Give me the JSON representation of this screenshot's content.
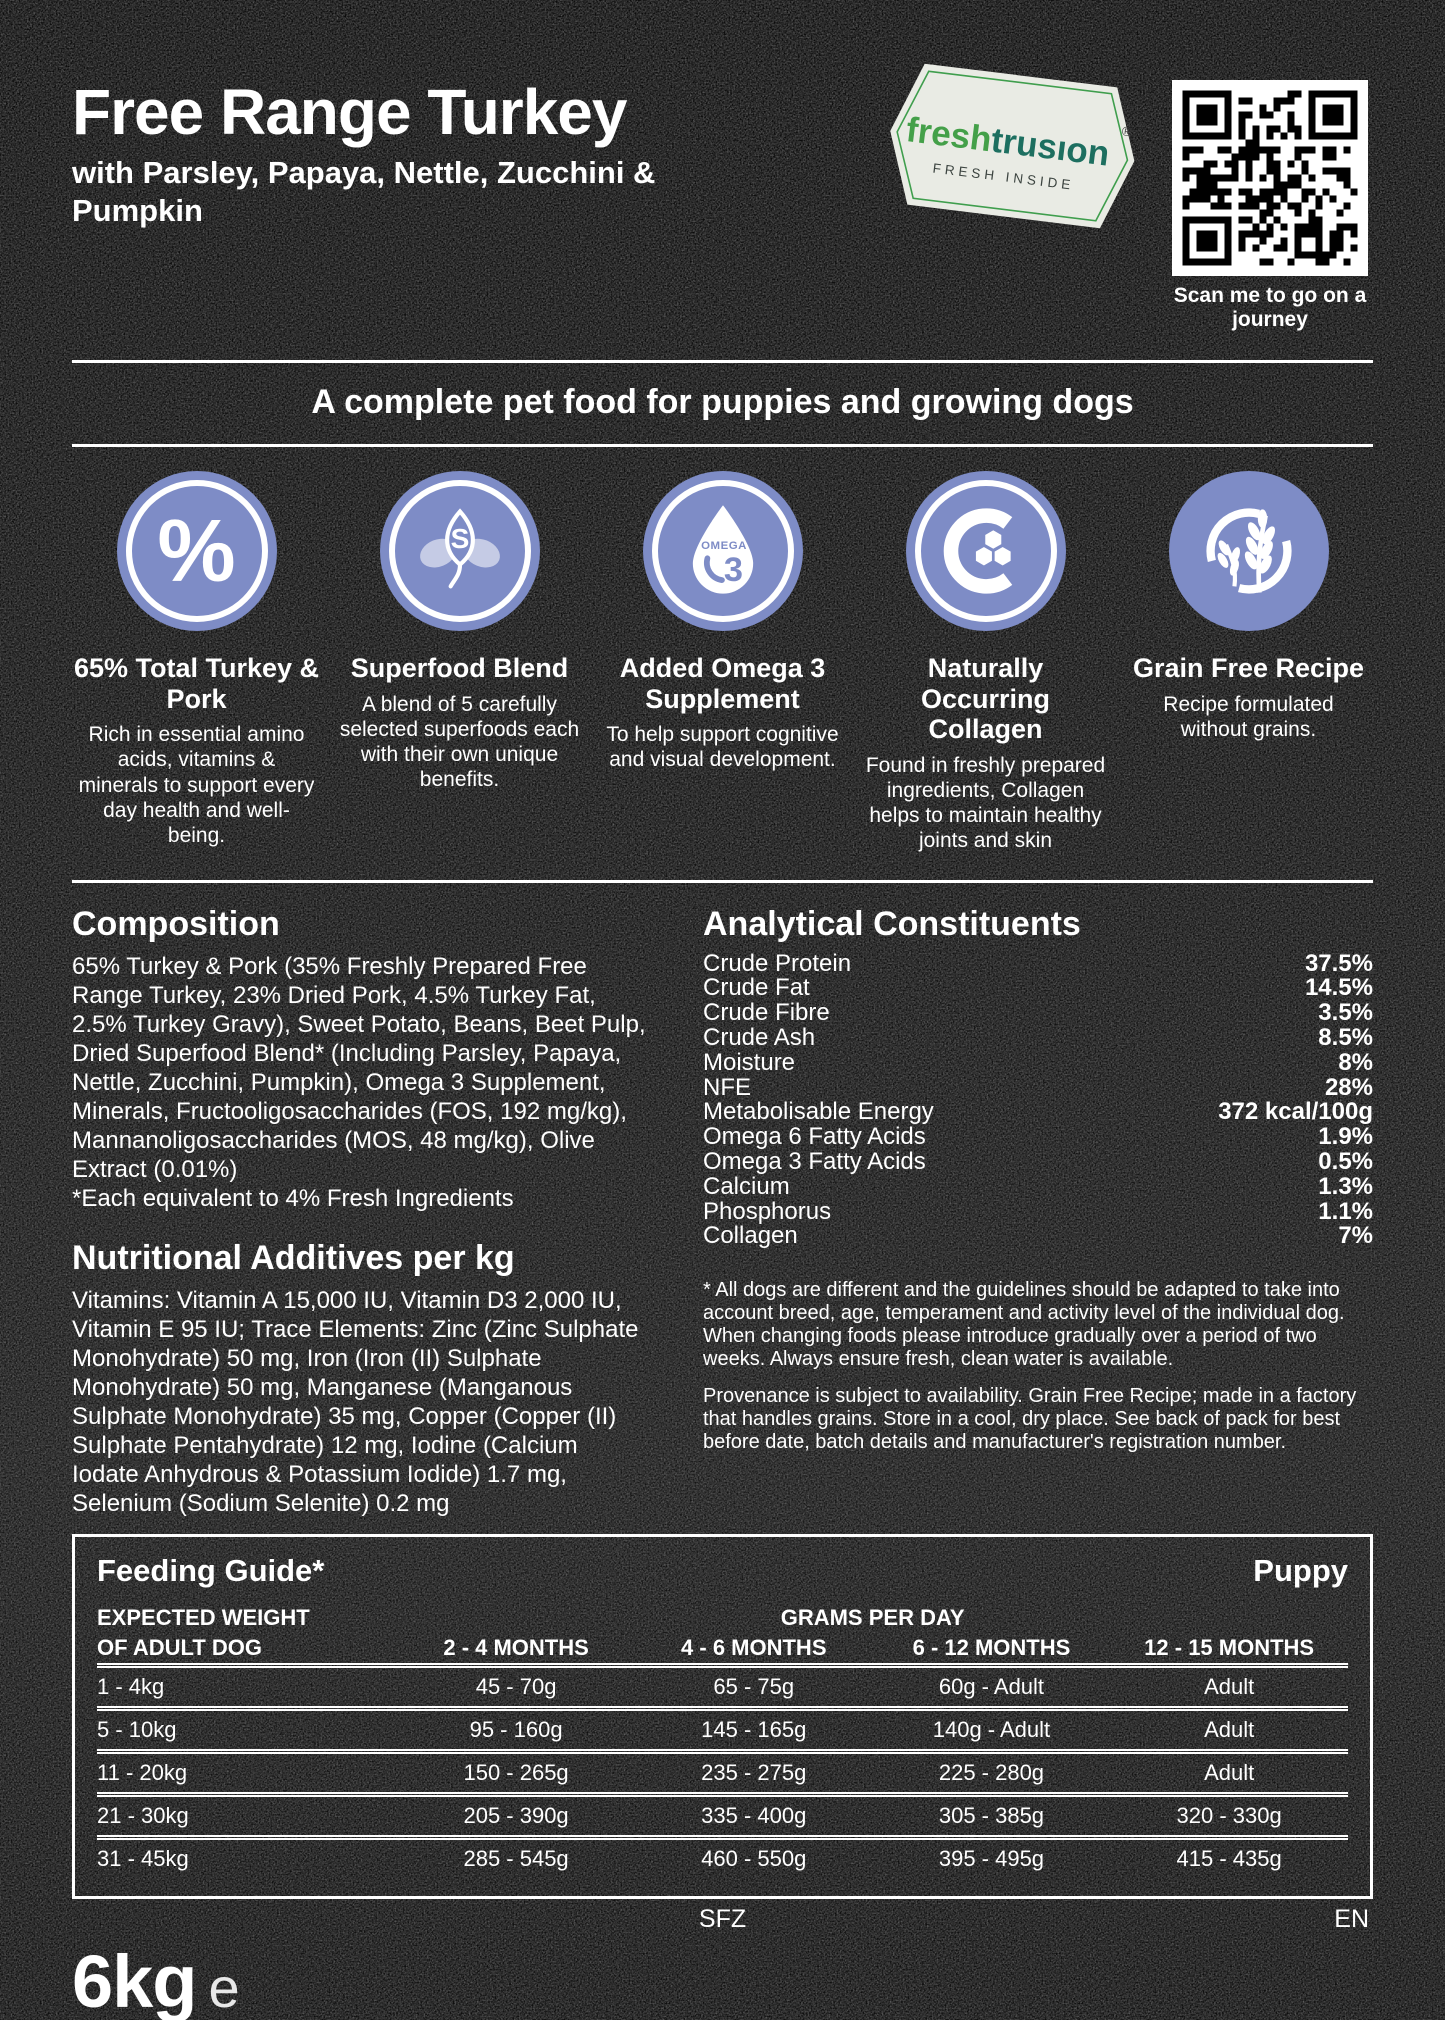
{
  "header": {
    "title": "Free Range Turkey",
    "subtitle": "with Parsley, Papaya, Nettle, Zucchini & Pumpkin",
    "logo": {
      "brand_fresh": "fresh",
      "brand_trusion": "trusıon",
      "registered": "®",
      "tagline": "FRESH INSIDE"
    },
    "qr_caption": "Scan me to go on a journey"
  },
  "banner": "A complete pet food for puppies and growing dogs",
  "features": [
    {
      "icon": "percent-icon",
      "icon_glyph": "%",
      "title": "65% Total Turkey & Pork",
      "description": "Rich in essential amino acids, vitamins & minerals to support every day health and well-being."
    },
    {
      "icon": "superfood-leaf-icon",
      "icon_letter": "S",
      "title": "Superfood Blend",
      "description": "A blend of 5 carefully selected superfoods each with their own unique benefits."
    },
    {
      "icon": "omega3-drop-icon",
      "icon_text_top": "OMEGA",
      "icon_text_num": "3",
      "title": "Added Omega 3 Supplement",
      "description": "To help support cognitive and visual development."
    },
    {
      "icon": "collagen-icon",
      "title": "Naturally Occurring Collagen",
      "description": "Found in freshly prepared ingredients, Collagen helps to maintain healthy joints and skin"
    },
    {
      "icon": "grain-free-icon",
      "title": "Grain Free Recipe",
      "description": "Recipe formulated without grains."
    }
  ],
  "composition": {
    "heading": "Composition",
    "body": "65% Turkey & Pork (35% Freshly Prepared Free Range Turkey, 23% Dried Pork, 4.5% Turkey Fat, 2.5% Turkey Gravy), Sweet Potato, Beans, Beet Pulp, Dried Superfood Blend* (Including Parsley, Papaya, Nettle, Zucchini, Pumpkin), Omega 3 Supplement, Minerals, Fructooligosaccharides (FOS, 192 mg/kg), Mannanoligosaccharides (MOS, 48 mg/kg), Olive Extract (0.01%)",
    "footnote": "*Each equivalent to 4% Fresh Ingredients"
  },
  "nutritional_additives": {
    "heading": "Nutritional Additives per kg",
    "body": "Vitamins: Vitamin A 15,000 IU, Vitamin D3 2,000 IU, Vitamin E 95 IU; Trace Elements: Zinc (Zinc Sulphate Monohydrate) 50 mg, Iron (Iron (II) Sulphate Monohydrate) 50 mg, Manganese (Manganous Sulphate Monohydrate) 35 mg, Copper (Copper (II) Sulphate Pentahydrate) 12 mg, Iodine (Calcium Iodate Anhydrous & Potassium Iodide) 1.7 mg, Selenium (Sodium Selenite) 0.2 mg"
  },
  "analytical_constituents": {
    "heading": "Analytical Constituents",
    "rows": [
      {
        "label": "Crude Protein",
        "value": "37.5%"
      },
      {
        "label": "Crude Fat",
        "value": "14.5%"
      },
      {
        "label": "Crude Fibre",
        "value": "3.5%"
      },
      {
        "label": "Crude Ash",
        "value": "8.5%"
      },
      {
        "label": "Moisture",
        "value": "8%"
      },
      {
        "label": "NFE",
        "value": "28%"
      },
      {
        "label": "Metabolisable Energy",
        "value": "372 kcal/100g"
      },
      {
        "label": "Omega 6 Fatty Acids",
        "value": "1.9%"
      },
      {
        "label": "Omega 3 Fatty Acids",
        "value": "0.5%"
      },
      {
        "label": "Calcium",
        "value": "1.3%"
      },
      {
        "label": "Phosphorus",
        "value": "1.1%"
      },
      {
        "label": "Collagen",
        "value": "7%"
      }
    ]
  },
  "notes": [
    "* All dogs are different and the guidelines should be adapted to take into account breed, age, temperament and activity level of the individual dog. When changing foods please introduce gradually over a period of two weeks. Always ensure fresh, clean water is available.",
    "Provenance is subject to availability. Grain Free Recipe; made in a factory that handles grains. Store in a cool, dry place. See back of pack for best before date, batch details and manufacturer's registration number."
  ],
  "feeding_guide": {
    "title": "Feeding Guide*",
    "badge": "Puppy",
    "weight_header": "EXPECTED WEIGHT OF ADULT DOG",
    "grams_header": "GRAMS PER DAY",
    "columns": [
      "2 - 4 MONTHS",
      "4 - 6 MONTHS",
      "6 - 12 MONTHS",
      "12 - 15 MONTHS"
    ],
    "rows": [
      {
        "weight": "1 - 4kg",
        "values": [
          "45 - 70g",
          "65 - 75g",
          "60g - Adult",
          "Adult"
        ]
      },
      {
        "weight": "5 - 10kg",
        "values": [
          "95 - 160g",
          "145 - 165g",
          "140g - Adult",
          "Adult"
        ]
      },
      {
        "weight": "11 - 20kg",
        "values": [
          "150 - 265g",
          "235 - 275g",
          "225 - 280g",
          "Adult"
        ]
      },
      {
        "weight": "21 - 30kg",
        "values": [
          "205 - 390g",
          "335 - 400g",
          "305 - 385g",
          "320 - 330g"
        ]
      },
      {
        "weight": "31 - 45kg",
        "values": [
          "285 - 545g",
          "460 - 550g",
          "395 - 495g",
          "415 - 435g"
        ]
      }
    ]
  },
  "footer": {
    "pack_weight": "6kg",
    "estimated_sign": "e",
    "code_center": "SFZ",
    "code_right": "EN"
  },
  "colors": {
    "accent_periwinkle": "#7E8CC6",
    "brand_green_light": "#44A049",
    "brand_green_dark": "#1D6F60",
    "badge_background": "#E9EBE4",
    "background": "#101010",
    "text": "#FFFFFF"
  }
}
